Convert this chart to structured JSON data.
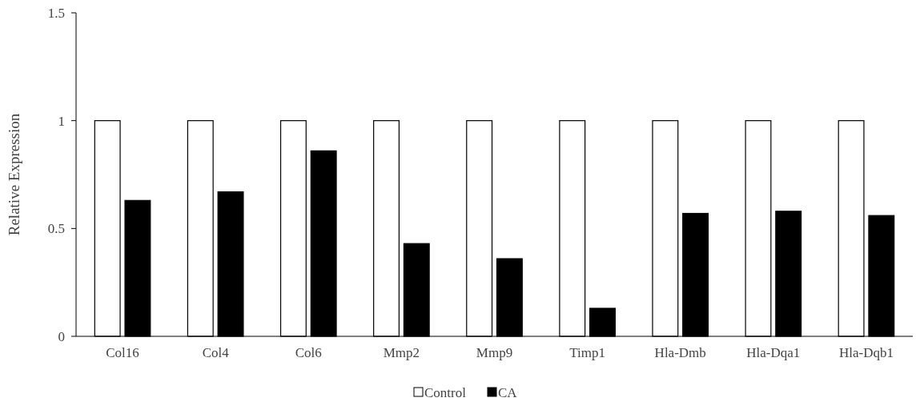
{
  "chart_data": {
    "type": "bar",
    "ylabel": "Relative Expression",
    "categories": [
      "Col16",
      "Col4",
      "Col6",
      "Mmp2",
      "Mmp9",
      "Timp1",
      "Hla-Dmb",
      "Hla-Dqa1",
      "Hla-Dqb1"
    ],
    "series": [
      {
        "name": "Control",
        "color": "#ffffff",
        "values": [
          1,
          1,
          1,
          1,
          1,
          1,
          1,
          1,
          1
        ]
      },
      {
        "name": "CA",
        "color": "#000000",
        "values": [
          0.63,
          0.67,
          0.86,
          0.43,
          0.36,
          0.13,
          0.57,
          0.58,
          0.56
        ]
      }
    ],
    "ylim": [
      0,
      1.5
    ],
    "yticks": [
      0,
      0.5,
      1,
      1.5
    ],
    "grid": false,
    "legend": "bottom"
  }
}
